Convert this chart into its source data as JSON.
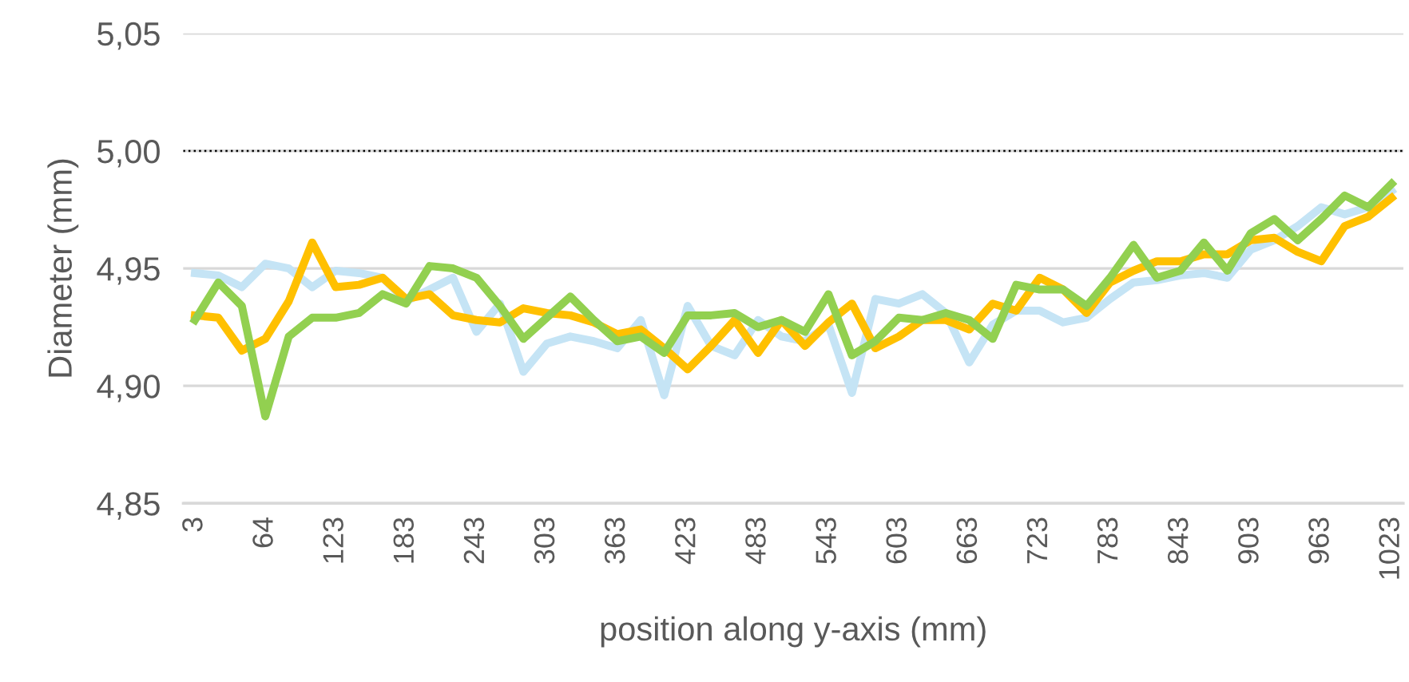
{
  "chart_data": {
    "type": "line",
    "xlabel": "position along y-axis (mm)",
    "ylabel": "Diameter (mm)",
    "categories": [
      "3",
      null,
      null,
      "64",
      null,
      null,
      "123",
      null,
      null,
      "183",
      null,
      null,
      "243",
      null,
      null,
      "303",
      null,
      null,
      "363",
      null,
      null,
      "423",
      null,
      null,
      "483",
      null,
      null,
      "543",
      null,
      null,
      "603",
      null,
      null,
      "663",
      null,
      null,
      "723",
      null,
      null,
      "783",
      null,
      null,
      "843",
      null,
      null,
      "903",
      null,
      null,
      "963",
      null,
      null,
      "1023"
    ],
    "series": [
      {
        "color": "#c5e4f5",
        "values": [
          4.948,
          4.947,
          4.942,
          4.952,
          4.95,
          4.942,
          4.949,
          4.948,
          4.946,
          4.936,
          4.941,
          4.946,
          4.923,
          4.935,
          4.906,
          4.918,
          4.921,
          4.919,
          4.916,
          4.928,
          4.896,
          4.934,
          4.917,
          4.913,
          4.928,
          4.921,
          4.919,
          4.926,
          4.897,
          4.937,
          4.935,
          4.939,
          4.931,
          4.91,
          4.926,
          4.932,
          4.932,
          4.927,
          4.929,
          4.937,
          4.944,
          4.945,
          4.947,
          4.948,
          4.946,
          4.958,
          4.962,
          4.968,
          4.976,
          4.973,
          4.976,
          4.983
        ]
      },
      {
        "color": "#ffc000",
        "values": [
          4.93,
          4.929,
          4.915,
          4.92,
          4.936,
          4.961,
          4.942,
          4.943,
          4.946,
          4.937,
          4.939,
          4.93,
          4.928,
          4.927,
          4.933,
          4.931,
          4.93,
          4.927,
          4.922,
          4.924,
          4.916,
          4.907,
          4.917,
          4.928,
          4.914,
          4.928,
          4.917,
          4.927,
          4.935,
          4.916,
          4.921,
          4.928,
          4.928,
          4.924,
          4.935,
          4.932,
          4.946,
          4.941,
          4.931,
          4.944,
          4.949,
          4.953,
          4.953,
          4.956,
          4.956,
          4.962,
          4.963,
          4.957,
          4.953,
          4.968,
          4.972,
          4.98
        ]
      },
      {
        "color": "#92d050",
        "values": [
          4.928,
          4.944,
          4.934,
          4.887,
          4.921,
          4.929,
          4.929,
          4.931,
          4.939,
          4.935,
          4.951,
          4.95,
          4.946,
          4.934,
          4.92,
          4.929,
          4.938,
          4.928,
          4.919,
          4.921,
          4.914,
          4.93,
          4.93,
          4.931,
          4.925,
          4.928,
          4.923,
          4.939,
          4.913,
          4.919,
          4.929,
          4.928,
          4.931,
          4.928,
          4.92,
          4.943,
          4.941,
          4.941,
          4.934,
          4.946,
          4.96,
          4.946,
          4.949,
          4.961,
          4.949,
          4.965,
          4.971,
          4.962,
          4.971,
          4.981,
          4.976,
          4.986
        ]
      }
    ],
    "ylim": [
      4.85,
      5.05
    ],
    "yticks": [
      {
        "value": 4.85,
        "label": "4,85"
      },
      {
        "value": 4.9,
        "label": "4,90"
      },
      {
        "value": 4.95,
        "label": "4,95"
      },
      {
        "value": 5.0,
        "label": "5,00"
      },
      {
        "value": 5.05,
        "label": "5,05"
      }
    ],
    "ref_lines": [
      {
        "axis": "y",
        "value": 5.0,
        "label": null,
        "color": "#000000",
        "line_style": "dotted"
      }
    ],
    "grid": "y",
    "marker": "none",
    "line_style": "solid"
  }
}
